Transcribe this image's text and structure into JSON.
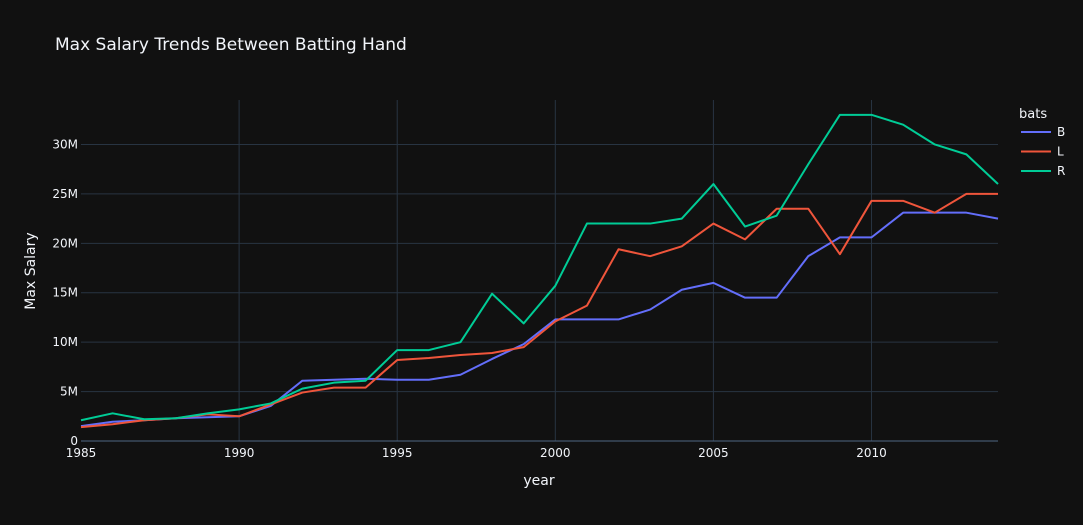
{
  "chart_data": {
    "type": "line",
    "title": "Max Salary Trends Between Batting Hand",
    "xlabel": "year",
    "ylabel": "Max Salary",
    "xlim": [
      1985,
      2014
    ],
    "ylim": [
      0,
      34500000
    ],
    "x_ticks": [
      1985,
      1990,
      1995,
      2000,
      2005,
      2010
    ],
    "y_ticks": [
      0,
      5000000,
      10000000,
      15000000,
      20000000,
      25000000,
      30000000
    ],
    "y_tick_labels": [
      "0",
      "5M",
      "10M",
      "15M",
      "20M",
      "25M",
      "30M"
    ],
    "grid": true,
    "legend": {
      "title": "bats",
      "placement": "top-right"
    },
    "x": [
      1985,
      1986,
      1987,
      1988,
      1989,
      1990,
      1991,
      1992,
      1993,
      1994,
      1995,
      1996,
      1997,
      1998,
      1999,
      2000,
      2001,
      2002,
      2003,
      2004,
      2005,
      2006,
      2007,
      2008,
      2009,
      2010,
      2011,
      2012,
      2013,
      2014
    ],
    "series": [
      {
        "name": "B",
        "color": "#636efa",
        "values": [
          1500000,
          1950000,
          2100000,
          2300000,
          2400000,
          2500000,
          3550000,
          6100000,
          6200000,
          6300000,
          6200000,
          6200000,
          6700000,
          8300000,
          9800000,
          12300000,
          12300000,
          12300000,
          13300000,
          15300000,
          16000000,
          14500000,
          14500000,
          18700000,
          20600000,
          20600000,
          23100000,
          23100000,
          23100000,
          22500000
        ]
      },
      {
        "name": "L",
        "color": "#ef553b",
        "values": [
          1400000,
          1700000,
          2100000,
          2300000,
          2700000,
          2500000,
          3700000,
          4900000,
          5400000,
          5400000,
          8200000,
          8400000,
          8700000,
          8900000,
          9500000,
          12100000,
          13700000,
          19400000,
          18700000,
          19700000,
          22000000,
          20400000,
          23500000,
          23500000,
          18900000,
          24300000,
          24300000,
          23100000,
          25000000,
          25000000
        ]
      },
      {
        "name": "R",
        "color": "#00cc96",
        "values": [
          2100000,
          2800000,
          2200000,
          2300000,
          2800000,
          3200000,
          3800000,
          5300000,
          5900000,
          6100000,
          9200000,
          9200000,
          10000000,
          14900000,
          11900000,
          15700000,
          22000000,
          22000000,
          22000000,
          22500000,
          26000000,
          21700000,
          22800000,
          28000000,
          33000000,
          33000000,
          32000000,
          30000000,
          29000000,
          26000000
        ]
      }
    ]
  }
}
